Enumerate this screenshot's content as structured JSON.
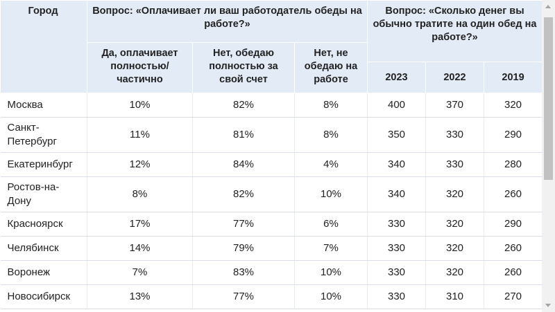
{
  "header": {
    "city": "Город",
    "q1": "Вопрос: «Оплачивает ли ваш работодатель обеды на работе?»",
    "q2": "Вопрос: «Сколько денег вы обычно тратите на один обед на работе?»",
    "sub": [
      "Да, оплачивает полностью/ частично",
      "Нет, обедаю полностью за свой счет",
      "Нет, не обедаю на работе"
    ],
    "years": [
      "2023",
      "2022",
      "2019"
    ]
  },
  "rows": [
    {
      "city": "Москва",
      "yes": "10%",
      "own": "82%",
      "no": "8%",
      "y2023": "400",
      "y2022": "370",
      "y2019": "320"
    },
    {
      "city": "Санкт-Петербург",
      "yes": "11%",
      "own": "81%",
      "no": "8%",
      "y2023": "350",
      "y2022": "330",
      "y2019": "290"
    },
    {
      "city": "Екатеринбург",
      "yes": "12%",
      "own": "84%",
      "no": "4%",
      "y2023": "340",
      "y2022": "330",
      "y2019": "280"
    },
    {
      "city": "Ростов-на-Дону",
      "yes": "8%",
      "own": "82%",
      "no": "10%",
      "y2023": "340",
      "y2022": "320",
      "y2019": "260"
    },
    {
      "city": "Красноярск",
      "yes": "17%",
      "own": "77%",
      "no": "6%",
      "y2023": "330",
      "y2022": "320",
      "y2019": "290"
    },
    {
      "city": "Челябинск",
      "yes": "14%",
      "own": "79%",
      "no": "7%",
      "y2023": "330",
      "y2022": "320",
      "y2019": "260"
    },
    {
      "city": "Воронеж",
      "yes": "7%",
      "own": "83%",
      "no": "10%",
      "y2023": "330",
      "y2022": "320",
      "y2019": "260"
    },
    {
      "city": "Новосибирск",
      "yes": "13%",
      "own": "77%",
      "no": "10%",
      "y2023": "330",
      "y2022": "310",
      "y2019": "270"
    }
  ]
}
